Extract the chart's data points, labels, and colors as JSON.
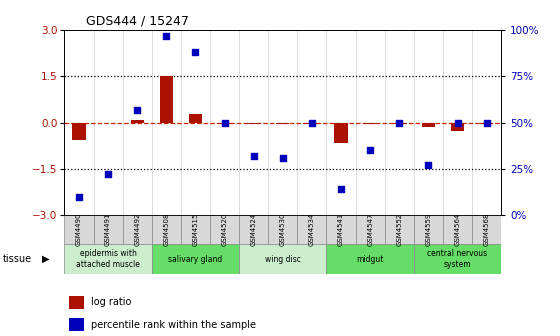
{
  "title": "GDS444 / 15247",
  "samples": [
    "GSM4490",
    "GSM4491",
    "GSM4492",
    "GSM4508",
    "GSM4515",
    "GSM4520",
    "GSM4524",
    "GSM4530",
    "GSM4534",
    "GSM4541",
    "GSM4547",
    "GSM4552",
    "GSM4559",
    "GSM4564",
    "GSM4568"
  ],
  "log_ratio": [
    -0.55,
    0.0,
    0.1,
    1.5,
    0.28,
    -0.05,
    -0.05,
    -0.05,
    -0.05,
    -0.65,
    -0.05,
    -0.05,
    -0.15,
    -0.28,
    -0.05
  ],
  "percentile": [
    10,
    22,
    57,
    97,
    88,
    50,
    32,
    31,
    50,
    14,
    35,
    50,
    27,
    50,
    50
  ],
  "tissue_groups": [
    {
      "label": "epidermis with\nattached muscle",
      "start": 0,
      "end": 2,
      "color": "#cceecc"
    },
    {
      "label": "salivary gland",
      "start": 3,
      "end": 5,
      "color": "#66dd66"
    },
    {
      "label": "wing disc",
      "start": 6,
      "end": 8,
      "color": "#cceecc"
    },
    {
      "label": "midgut",
      "start": 9,
      "end": 11,
      "color": "#66dd66"
    },
    {
      "label": "central nervous\nsystem",
      "start": 12,
      "end": 14,
      "color": "#66dd66"
    }
  ],
  "ylim_left": [
    -3,
    3
  ],
  "ylim_right": [
    0,
    100
  ],
  "yticks_left": [
    -3,
    -1.5,
    0,
    1.5,
    3
  ],
  "yticks_right": [
    0,
    25,
    50,
    75,
    100
  ],
  "bar_color": "#aa1100",
  "scatter_color": "#0000bb",
  "hline_color": "#cc2200",
  "dotted_color": "black",
  "background_color": "white",
  "sample_cell_color": "#d8d8d8",
  "cell_border_color": "#888888"
}
